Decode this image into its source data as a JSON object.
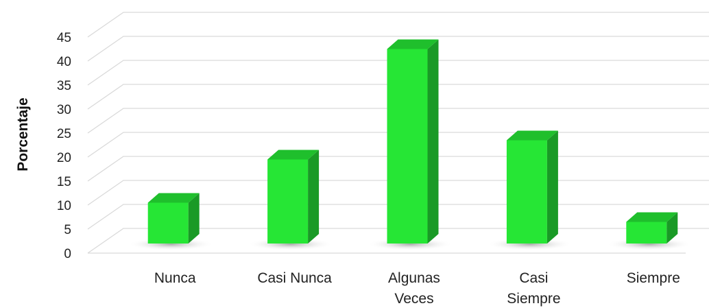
{
  "chart_data": {
    "type": "bar",
    "style": "3d-column",
    "categories": [
      "Nunca",
      "Casi Nunca",
      "Algunas Veces",
      "Casi Siempre",
      "Siempre"
    ],
    "category_lines": [
      [
        "Nunca"
      ],
      [
        "Casi Nunca"
      ],
      [
        "Algunas",
        "Veces"
      ],
      [
        "Casi",
        "Siempre"
      ],
      [
        "Siempre"
      ]
    ],
    "values": [
      10.5,
      19.5,
      42.5,
      23.5,
      6.5
    ],
    "ylabel": "Porcentaje",
    "xlabel": "",
    "title": "",
    "ylim": [
      0,
      45
    ],
    "yticks": [
      0,
      5,
      10,
      15,
      20,
      25,
      30,
      35,
      40,
      45
    ],
    "grid": true,
    "legend": "none",
    "colors": {
      "front": "#26e635",
      "side": "#1a9a26",
      "top": "#1fbf2c",
      "grid": "#d9d9d9"
    }
  }
}
